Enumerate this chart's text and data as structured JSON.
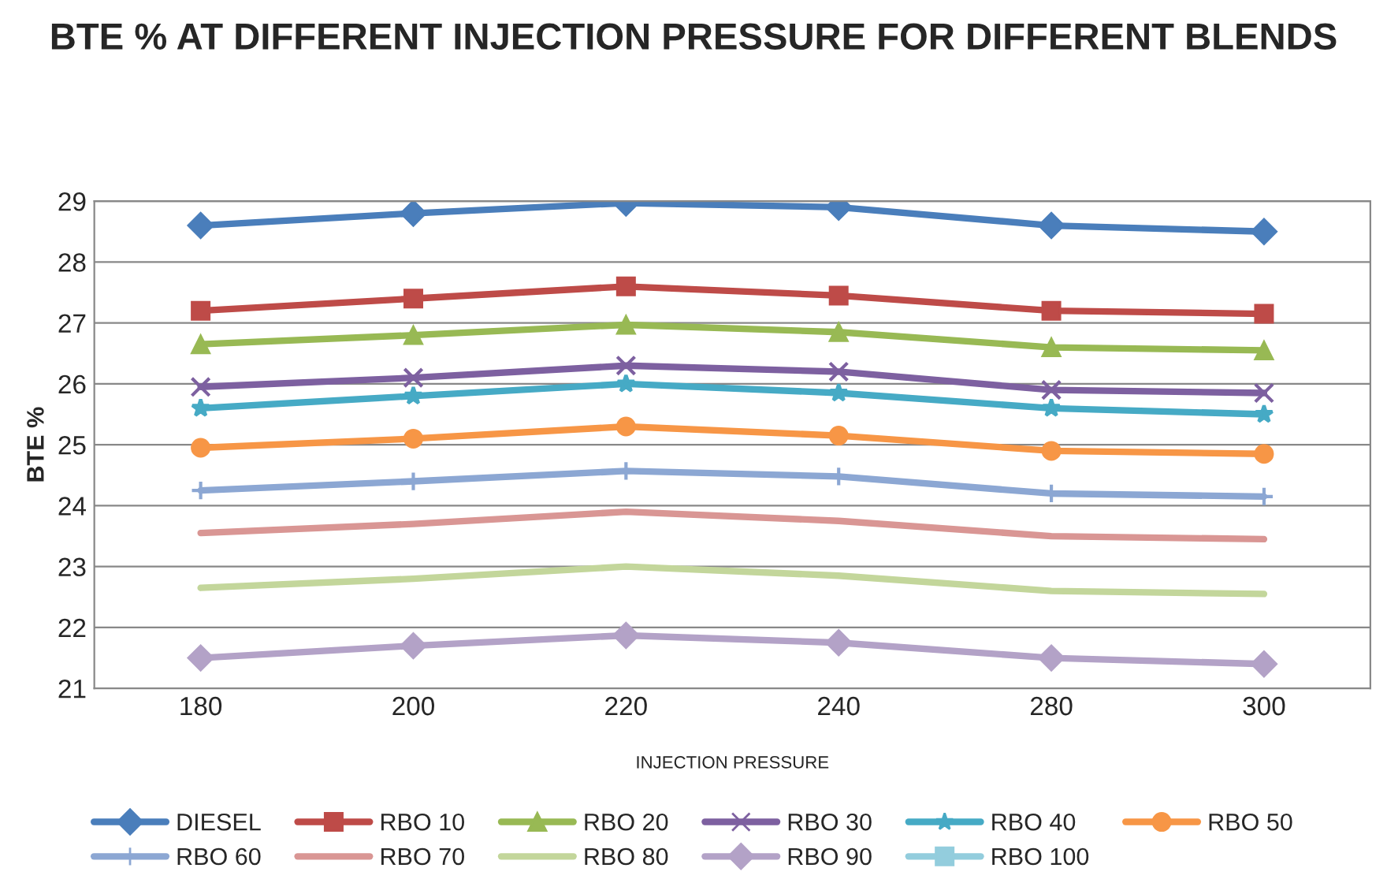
{
  "chart_data": {
    "type": "line",
    "title": "BTE % AT DIFFERENT INJECTION PRESSURE FOR DIFFERENT BLENDS",
    "xlabel": "INJECTION PRESSURE",
    "ylabel": "BTE %",
    "categories": [
      "180",
      "200",
      "220",
      "240",
      "280",
      "300"
    ],
    "ylim": [
      21,
      29
    ],
    "yticks": [
      21,
      22,
      23,
      24,
      25,
      26,
      27,
      28,
      29
    ],
    "grid": "y",
    "legend": "bottom",
    "series": [
      {
        "name": "DIESEL",
        "color": "#4a7ebb",
        "marker": "diamond",
        "values": [
          28.6,
          28.8,
          28.97,
          28.9,
          28.6,
          28.5
        ]
      },
      {
        "name": "RBO 10",
        "color": "#be4b48",
        "marker": "square",
        "values": [
          27.2,
          27.4,
          27.6,
          27.45,
          27.2,
          27.15
        ]
      },
      {
        "name": "RBO 20",
        "color": "#98b954",
        "marker": "triangle",
        "values": [
          26.65,
          26.8,
          26.97,
          26.85,
          26.6,
          26.55
        ]
      },
      {
        "name": "RBO 30",
        "color": "#7d60a0",
        "marker": "cross",
        "values": [
          25.95,
          26.1,
          26.3,
          26.2,
          25.9,
          25.85
        ]
      },
      {
        "name": "RBO 40",
        "color": "#46aac5",
        "marker": "star",
        "values": [
          25.6,
          25.8,
          26.0,
          25.85,
          25.6,
          25.5
        ]
      },
      {
        "name": "RBO 50",
        "color": "#f79646",
        "marker": "circle",
        "values": [
          24.95,
          25.1,
          25.3,
          25.15,
          24.9,
          24.85
        ]
      },
      {
        "name": "RBO 60",
        "color": "#8ca7d3",
        "marker": "plus",
        "values": [
          24.25,
          24.4,
          24.57,
          24.48,
          24.2,
          24.15
        ]
      },
      {
        "name": "RBO 70",
        "color": "#d99694",
        "marker": "none",
        "values": [
          23.55,
          23.7,
          23.9,
          23.75,
          23.5,
          23.45
        ]
      },
      {
        "name": "RBO 80",
        "color": "#c3d69b",
        "marker": "none",
        "values": [
          22.65,
          22.8,
          23.0,
          22.85,
          22.6,
          22.55
        ]
      },
      {
        "name": "RBO 90",
        "color": "#b3a2c7",
        "marker": "diamond",
        "values": [
          21.5,
          21.7,
          21.87,
          21.75,
          21.5,
          21.4
        ]
      },
      {
        "name": "RBO 100",
        "color": "#93cddd",
        "marker": "square",
        "values": [
          null,
          null,
          null,
          null,
          null,
          null
        ]
      }
    ]
  }
}
